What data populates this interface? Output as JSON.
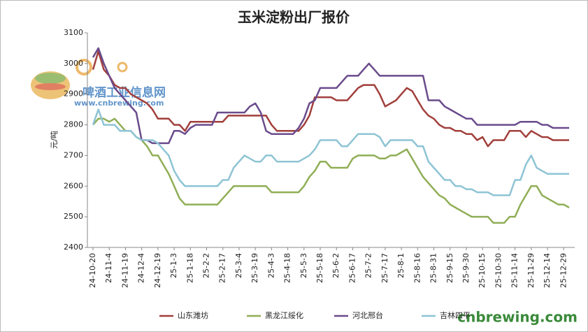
{
  "chart_data": {
    "type": "line",
    "title": "玉米淀粉出厂报价",
    "y_label": "元/吨",
    "watermark": "啤酒工业信息网",
    "watermark_url": "www.cnbrewing.com",
    "footer": "cnbrewing.com",
    "categories": [
      "24-10-20",
      null,
      null,
      "24-11-4",
      null,
      null,
      "24-11-19",
      null,
      null,
      "24-12-4",
      null,
      null,
      "24-12-19",
      null,
      null,
      "25-1-3",
      null,
      null,
      "25-1-18",
      null,
      null,
      "25-2-2",
      null,
      null,
      "25-2-17",
      null,
      null,
      "25-3-4",
      null,
      null,
      "25-3-19",
      null,
      null,
      "25-4-3",
      null,
      null,
      "25-4-18",
      null,
      null,
      "25-5-3",
      null,
      null,
      "25-5-18",
      null,
      null,
      "25-6-2",
      null,
      null,
      "25-6-17",
      null,
      null,
      "25-7-2",
      null,
      null,
      "25-7-17",
      null,
      null,
      "25-8-1",
      null,
      null,
      "25-8-16",
      null,
      null,
      "25-8-31",
      null,
      null,
      "25-9-15",
      null,
      null,
      "25-9-30",
      null,
      null,
      "25-10-15",
      null,
      null,
      "25-10-30",
      null,
      null,
      "25-11-14",
      null,
      null,
      "25-11-29",
      null,
      null,
      "25-12-14",
      null,
      null,
      "25-12-29",
      null
    ],
    "ylim": [
      2400,
      3100
    ],
    "yticks": [
      2400,
      2500,
      2600,
      2700,
      2800,
      2900,
      3000,
      3100
    ],
    "grid": false,
    "series": [
      {
        "name": "山东潍坊",
        "color": "#a13f3b",
        "values": [
          2980,
          3040,
          2980,
          2960,
          2930,
          2920,
          2920,
          2900,
          2890,
          2880,
          2870,
          2850,
          2820,
          2820,
          2820,
          2800,
          2800,
          2780,
          2810,
          2810,
          2810,
          2810,
          2810,
          2810,
          2810,
          2830,
          2830,
          2830,
          2830,
          2830,
          2830,
          2830,
          2830,
          2800,
          2780,
          2780,
          2780,
          2780,
          2780,
          2800,
          2830,
          2890,
          2890,
          2890,
          2890,
          2880,
          2880,
          2880,
          2900,
          2920,
          2930,
          2930,
          2930,
          2900,
          2860,
          2870,
          2880,
          2900,
          2920,
          2910,
          2880,
          2850,
          2830,
          2820,
          2800,
          2790,
          2790,
          2780,
          2780,
          2770,
          2770,
          2750,
          2760,
          2730,
          2750,
          2750,
          2750,
          2780,
          2780,
          2780,
          2760,
          2780,
          2770,
          2760,
          2760,
          2750,
          2750,
          2750,
          2750
        ]
      },
      {
        "name": "黑龙江绥化",
        "color": "#8fae56",
        "values": [
          2800,
          2820,
          2820,
          2810,
          2820,
          2800,
          2780,
          2780,
          2760,
          2750,
          2730,
          2700,
          2700,
          2670,
          2640,
          2600,
          2560,
          2540,
          2540,
          2540,
          2540,
          2540,
          2540,
          2540,
          2560,
          2580,
          2600,
          2600,
          2600,
          2600,
          2600,
          2600,
          2600,
          2580,
          2580,
          2580,
          2580,
          2580,
          2580,
          2600,
          2630,
          2650,
          2680,
          2680,
          2660,
          2660,
          2660,
          2660,
          2690,
          2700,
          2700,
          2700,
          2700,
          2690,
          2690,
          2700,
          2700,
          2710,
          2720,
          2690,
          2660,
          2630,
          2610,
          2590,
          2570,
          2560,
          2540,
          2530,
          2520,
          2510,
          2500,
          2500,
          2500,
          2500,
          2480,
          2480,
          2480,
          2500,
          2500,
          2540,
          2570,
          2600,
          2600,
          2570,
          2560,
          2550,
          2540,
          2540,
          2530
        ]
      },
      {
        "name": "河北邢台",
        "color": "#6a4b8c",
        "values": [
          3020,
          3050,
          3000,
          2960,
          2920,
          2900,
          2880,
          2860,
          2840,
          2750,
          2750,
          2740,
          2740,
          2740,
          2740,
          2780,
          2780,
          2770,
          2790,
          2800,
          2800,
          2800,
          2800,
          2840,
          2840,
          2840,
          2840,
          2840,
          2840,
          2860,
          2870,
          2840,
          2780,
          2770,
          2770,
          2770,
          2770,
          2770,
          2790,
          2820,
          2870,
          2880,
          2920,
          2920,
          2920,
          2920,
          2940,
          2960,
          2960,
          2960,
          2980,
          3000,
          2980,
          2960,
          2960,
          2960,
          2960,
          2960,
          2960,
          2960,
          2960,
          2960,
          2880,
          2880,
          2880,
          2860,
          2850,
          2840,
          2830,
          2820,
          2820,
          2800,
          2800,
          2800,
          2800,
          2800,
          2800,
          2800,
          2800,
          2810,
          2810,
          2810,
          2810,
          2800,
          2800,
          2790,
          2790,
          2790,
          2790
        ]
      },
      {
        "name": "吉林四平",
        "color": "#8ec4d5",
        "values": [
          2800,
          2850,
          2800,
          2800,
          2800,
          2780,
          2780,
          2780,
          2760,
          2750,
          2750,
          2750,
          2740,
          2720,
          2700,
          2650,
          2620,
          2600,
          2600,
          2600,
          2600,
          2600,
          2600,
          2600,
          2620,
          2620,
          2660,
          2680,
          2700,
          2690,
          2680,
          2680,
          2700,
          2700,
          2680,
          2680,
          2680,
          2680,
          2680,
          2690,
          2700,
          2720,
          2750,
          2750,
          2750,
          2750,
          2730,
          2730,
          2750,
          2770,
          2770,
          2770,
          2770,
          2760,
          2730,
          2750,
          2750,
          2750,
          2750,
          2750,
          2730,
          2730,
          2680,
          2660,
          2640,
          2620,
          2620,
          2600,
          2600,
          2590,
          2590,
          2580,
          2580,
          2580,
          2570,
          2570,
          2570,
          2570,
          2620,
          2620,
          2670,
          2700,
          2660,
          2650,
          2640,
          2640,
          2640,
          2640,
          2640
        ]
      }
    ]
  }
}
